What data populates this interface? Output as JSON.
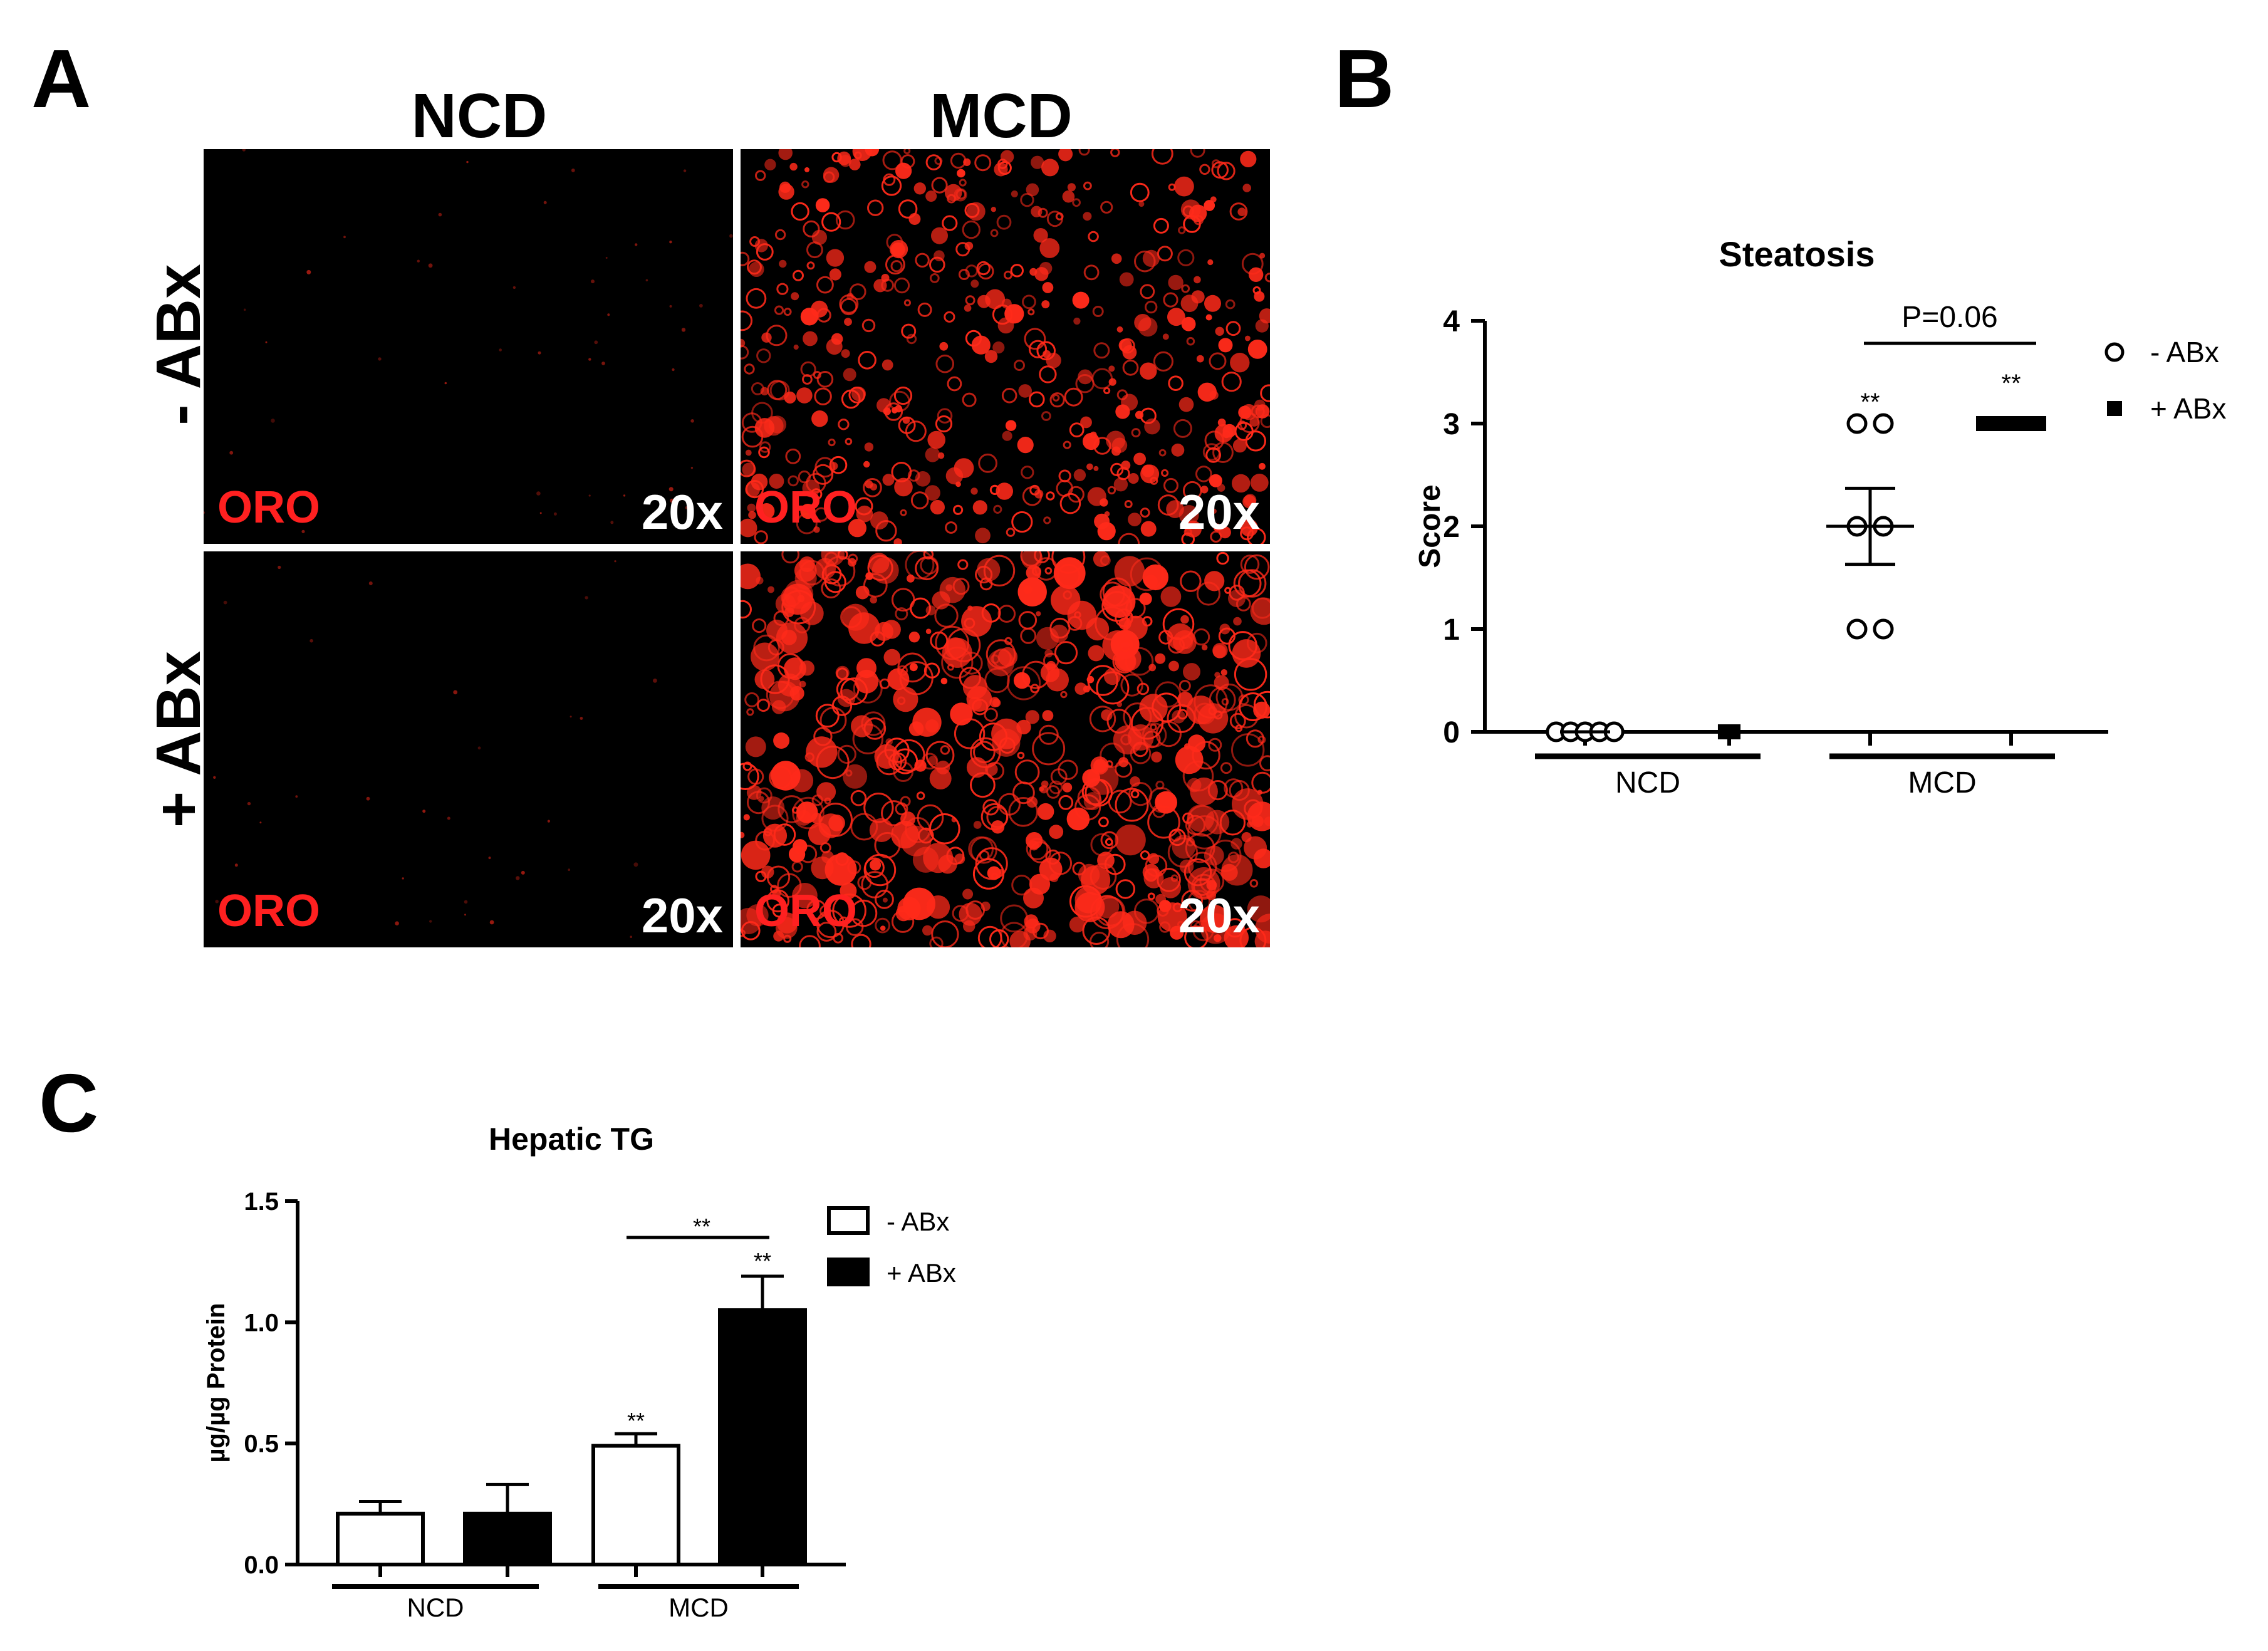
{
  "panels": {
    "a": {
      "letter": "A",
      "columns": [
        "NCD",
        "MCD"
      ],
      "rows": [
        "- ABx",
        "+ ABx"
      ],
      "stain_label": "ORO",
      "magnification": "20x",
      "images": [
        {
          "row": "- ABx",
          "col": "NCD",
          "stain_density": 0.04
        },
        {
          "row": "- ABx",
          "col": "MCD",
          "stain_density": 0.7
        },
        {
          "row": "+ ABx",
          "col": "NCD",
          "stain_density": 0.02
        },
        {
          "row": "+ ABx",
          "col": "MCD",
          "stain_density": 0.95
        }
      ],
      "stain_color": "#ff2a1a"
    },
    "b": {
      "letter": "B"
    },
    "c": {
      "letter": "C"
    }
  },
  "chart_data": [
    {
      "type": "scatter",
      "title": "Steatosis",
      "xlabel": "",
      "ylabel": "Score",
      "ylim": [
        0,
        4
      ],
      "yticks": [
        "0",
        "1",
        "2",
        "3",
        "4"
      ],
      "categories": [
        "NCD",
        "MCD"
      ],
      "legend_position": "top-right",
      "series": [
        {
          "name": "- ABx",
          "marker": "open-circle",
          "points": {
            "NCD": [
              0,
              0,
              0,
              0,
              0
            ],
            "MCD": [
              3,
              3,
              2,
              2,
              1,
              1
            ]
          },
          "mean": {
            "NCD": 0,
            "MCD": 2.0
          },
          "sem": {
            "NCD": 0,
            "MCD": 0.37
          }
        },
        {
          "name": "+ ABx",
          "marker": "filled-square",
          "points": {
            "NCD": [
              0,
              0
            ],
            "MCD": [
              3,
              3,
              3,
              3,
              3
            ]
          },
          "mean": {
            "NCD": 0,
            "MCD": 3.0
          },
          "sem": {
            "NCD": 0,
            "MCD": 0
          }
        }
      ],
      "annotations": [
        {
          "text": "P=0.06",
          "type": "bracket",
          "between": [
            "MCD - ABx",
            "MCD + ABx"
          ]
        },
        {
          "text": "**",
          "at": "MCD - ABx"
        },
        {
          "text": "**",
          "at": "MCD + ABx"
        }
      ]
    },
    {
      "type": "bar",
      "title": "Hepatic TG",
      "xlabel": "",
      "ylabel": "µg/µg Protein",
      "ylim": [
        0,
        1.5
      ],
      "yticks": [
        "0.0",
        "0.5",
        "1.0",
        "1.5"
      ],
      "categories": [
        "NCD",
        "MCD"
      ],
      "legend_position": "top-right",
      "series": [
        {
          "name": "- ABx",
          "fill": "open",
          "values": [
            0.21,
            0.49
          ],
          "errors": [
            0.05,
            0.05
          ]
        },
        {
          "name": "+ ABx",
          "fill": "solid",
          "values": [
            0.21,
            1.05
          ],
          "errors": [
            0.12,
            0.14
          ]
        }
      ],
      "annotations": [
        {
          "text": "**",
          "type": "bracket",
          "between": [
            "MCD - ABx",
            "MCD + ABx"
          ]
        },
        {
          "text": "**",
          "at": "MCD - ABx"
        },
        {
          "text": "**",
          "at": "MCD + ABx"
        }
      ]
    }
  ]
}
